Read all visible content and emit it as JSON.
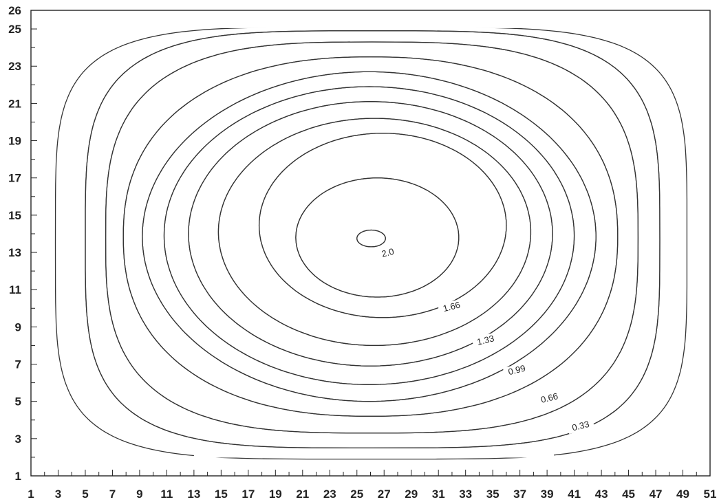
{
  "chart_data": {
    "type": "contour",
    "title": "",
    "xlabel": "",
    "ylabel": "",
    "xlim": [
      1,
      51
    ],
    "ylim": [
      1,
      26
    ],
    "x_ticks": [
      "1",
      "3",
      "5",
      "7",
      "9",
      "11",
      "13",
      "15",
      "17",
      "19",
      "21",
      "23",
      "25",
      "27",
      "29",
      "31",
      "33",
      "35",
      "37",
      "39",
      "41",
      "43",
      "45",
      "47",
      "49",
      "51"
    ],
    "y_ticks": [
      "1",
      "3",
      "5",
      "7",
      "9",
      "11",
      "13",
      "15",
      "17",
      "19",
      "21",
      "23",
      "25",
      "26"
    ],
    "center": {
      "x": 26,
      "y": 13.7
    },
    "levels": [
      {
        "value": 0.33,
        "label": "0.33",
        "x_min": 2.8,
        "x_max": 49.3,
        "y_min": 1.9,
        "y_max": 25.1,
        "label_x": 41.5,
        "label_y": 3.6
      },
      {
        "value": 0.5,
        "label": "",
        "x_min": 5.0,
        "x_max": 47.3,
        "y_min": 2.5,
        "y_max": 24.9,
        "label_x": null,
        "label_y": null
      },
      {
        "value": 0.66,
        "label": "0.66",
        "x_min": 6.5,
        "x_max": 45.7,
        "y_min": 3.3,
        "y_max": 24.3,
        "label_x": 39.2,
        "label_y": 5.1
      },
      {
        "value": 0.83,
        "label": "",
        "x_min": 7.8,
        "x_max": 44.2,
        "y_min": 4.2,
        "y_max": 23.5,
        "label_x": null,
        "label_y": null
      },
      {
        "value": 0.99,
        "label": "0.99",
        "x_min": 9.2,
        "x_max": 42.6,
        "y_min": 5.0,
        "y_max": 22.7,
        "label_x": 36.8,
        "label_y": 6.6
      },
      {
        "value": 1.16,
        "label": "",
        "x_min": 10.8,
        "x_max": 41.0,
        "y_min": 5.9,
        "y_max": 21.9,
        "label_x": null,
        "label_y": null
      },
      {
        "value": 1.33,
        "label": "1.33",
        "x_min": 12.6,
        "x_max": 39.4,
        "y_min": 6.9,
        "y_max": 21.1,
        "label_x": 34.5,
        "label_y": 8.2
      },
      {
        "value": 1.49,
        "label": "",
        "x_min": 14.8,
        "x_max": 37.8,
        "y_min": 8.0,
        "y_max": 20.2,
        "label_x": null,
        "label_y": null
      },
      {
        "value": 1.66,
        "label": "1.66",
        "x_min": 17.8,
        "x_max": 36.0,
        "y_min": 9.5,
        "y_max": 19.4,
        "label_x": 32.0,
        "label_y": 10.0
      },
      {
        "value": 1.83,
        "label": "",
        "x_min": 20.5,
        "x_max": 32.5,
        "y_min": 10.6,
        "y_max": 17.0,
        "label_x": null,
        "label_y": null
      },
      {
        "value": 2.0,
        "label": "2.0",
        "x_min": 25.0,
        "x_max": 27.1,
        "y_min": 13.3,
        "y_max": 14.2,
        "label_x": 27.3,
        "label_y": 12.9
      }
    ]
  }
}
